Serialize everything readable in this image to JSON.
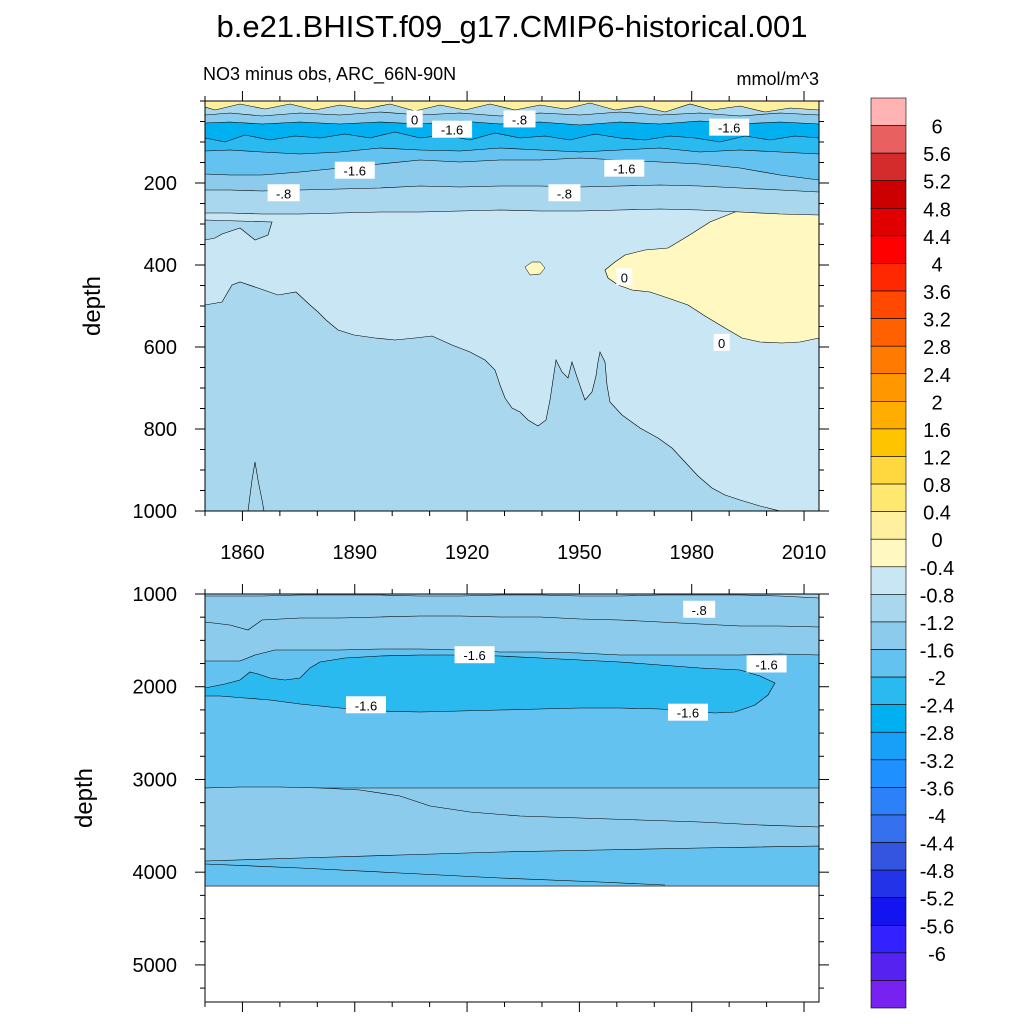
{
  "figure": {
    "title": "b.e21.BHIST.f09_g17.CMIP6-historical.001",
    "subtitle_left": "NO3 minus obs, ARC_66N-90N",
    "units": "mmol/m^3"
  },
  "chart_data": [
    {
      "type": "contour",
      "panel": "upper",
      "ylabel": "depth",
      "x_ticks": [
        1860,
        1890,
        1920,
        1950,
        1980,
        2010
      ],
      "y_ticks": [
        200,
        400,
        600,
        800,
        1000
      ],
      "xlim": [
        1850,
        2014
      ],
      "ylim": [
        1000,
        0
      ],
      "contour_labels": [
        {
          "text": "0",
          "x": 1906,
          "y": 45
        },
        {
          "text": "-1.6",
          "x": 1916,
          "y": 70
        },
        {
          "text": "-.8",
          "x": 1934,
          "y": 45
        },
        {
          "text": "-1.6",
          "x": 1990,
          "y": 65
        },
        {
          "text": "-1.6",
          "x": 1890,
          "y": 170
        },
        {
          "text": "-1.6",
          "x": 1962,
          "y": 165
        },
        {
          "text": "-.8",
          "x": 1871,
          "y": 225
        },
        {
          "text": "-.8",
          "x": 1946,
          "y": 225
        },
        {
          "text": "0",
          "x": 1962,
          "y": 430
        },
        {
          "text": "0",
          "x": 1988,
          "y": 590
        }
      ]
    },
    {
      "type": "contour",
      "panel": "lower",
      "ylabel": "depth",
      "y_ticks": [
        1000,
        2000,
        3000,
        4000,
        5000
      ],
      "xlim": [
        1850,
        2014
      ],
      "ylim": [
        5400,
        1000
      ],
      "contour_labels": [
        {
          "text": "-.8",
          "x": 1982,
          "y": 1170
        },
        {
          "text": "-1.6",
          "x": 1922,
          "y": 1660
        },
        {
          "text": "-1.6",
          "x": 2000,
          "y": 1760
        },
        {
          "text": "-1.6",
          "x": 1893,
          "y": 2200
        },
        {
          "text": "-1.6",
          "x": 1979,
          "y": 2280
        }
      ]
    }
  ],
  "colorbar": {
    "labels": [
      "6",
      "5.6",
      "5.2",
      "4.8",
      "4.4",
      "4",
      "3.6",
      "3.2",
      "2.8",
      "2.4",
      "2",
      "1.6",
      "1.2",
      "0.8",
      "0.4",
      "0",
      "-0.4",
      "-0.8",
      "-1.2",
      "-1.6",
      "-2",
      "-2.4",
      "-2.8",
      "-3.2",
      "-3.6",
      "-4",
      "-4.4",
      "-4.8",
      "-5.2",
      "-5.6",
      "-6"
    ],
    "colors": [
      "#ffb3b3",
      "#e86060",
      "#d42c2c",
      "#cc0000",
      "#e00000",
      "#ff0000",
      "#ff2800",
      "#ff4800",
      "#ff6000",
      "#ff7a00",
      "#ff9800",
      "#ffad00",
      "#ffc400",
      "#ffd840",
      "#ffe870",
      "#fff0a0",
      "#fff8c0",
      "#c8e6f4",
      "#a9d8ee",
      "#8ccbec",
      "#64c2f0",
      "#2bbaf0",
      "#00b0f0",
      "#18a0f8",
      "#1e90ff",
      "#2c80f8",
      "#3570ee",
      "#3355e0",
      "#2233e8",
      "#1414f0",
      "#3322ff",
      "#5522f0",
      "#7722f0"
    ]
  }
}
